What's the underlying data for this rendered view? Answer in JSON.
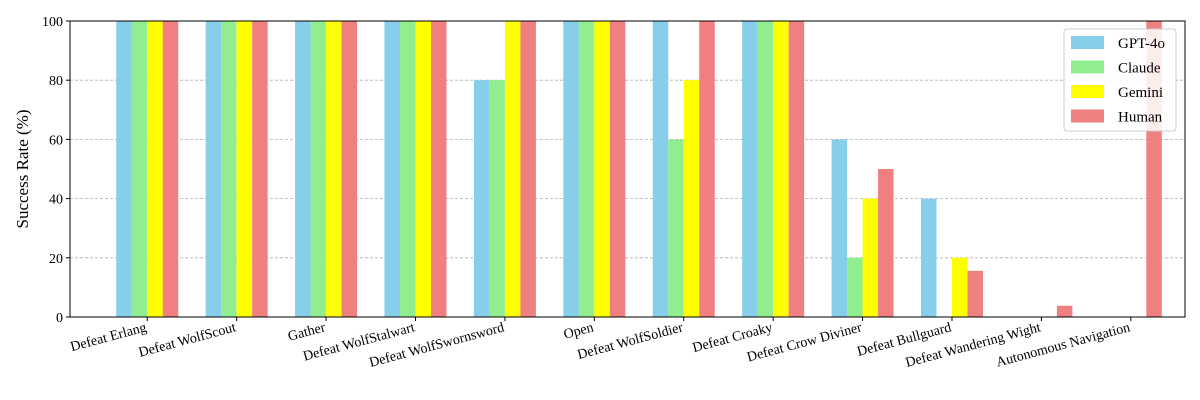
{
  "chart_data": {
    "type": "bar",
    "title": "",
    "xlabel": "",
    "ylabel": "Success Rate (%)",
    "ylim": [
      0,
      100
    ],
    "yticks": [
      0,
      20,
      40,
      60,
      80,
      100
    ],
    "grid": "y-dashed",
    "legend_position": "top-right",
    "categories": [
      "Defeat Erlang",
      "Defeat WolfScout",
      "Gather",
      "Defeat WolfStalwart",
      "Defeat WolfSwornsword",
      "Open",
      "Defeat WolfSoldier",
      "Defeat Croaky",
      "Defeat Crow Diviner",
      "Defeat Bullguard",
      "Defeat Wandering Wight",
      "Autonomous Navigation"
    ],
    "series": [
      {
        "name": "GPT-4o",
        "color": "#87ceeb",
        "values": [
          100,
          100,
          100,
          100,
          80,
          100,
          100,
          100,
          60,
          40,
          0,
          0
        ]
      },
      {
        "name": "Claude",
        "color": "#90ee90",
        "values": [
          100,
          100,
          100,
          100,
          80,
          100,
          60,
          100,
          20,
          0,
          0,
          0
        ]
      },
      {
        "name": "Gemini",
        "color": "#ffff00",
        "values": [
          100,
          100,
          100,
          100,
          100,
          100,
          80,
          100,
          40,
          20,
          0,
          0
        ]
      },
      {
        "name": "Human",
        "color": "#f08080",
        "values": [
          100,
          100,
          100,
          100,
          100,
          100,
          100,
          100,
          50,
          15.6,
          3.8,
          100
        ]
      }
    ]
  }
}
